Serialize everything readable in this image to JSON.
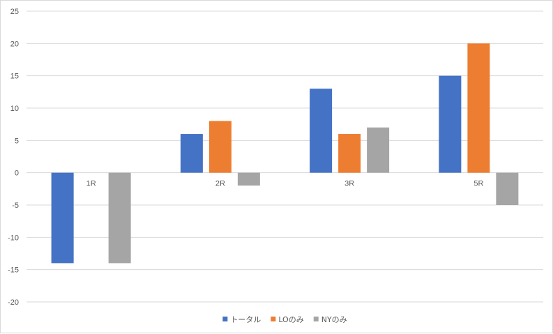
{
  "chart_data": {
    "type": "bar",
    "categories": [
      "1R",
      "2R",
      "3R",
      "5R"
    ],
    "series": [
      {
        "name": "トータル",
        "values": [
          -14,
          6,
          13,
          15
        ],
        "color": "#4472C4"
      },
      {
        "name": "LOのみ",
        "values": [
          0,
          8,
          6,
          20
        ],
        "color": "#ED7D31"
      },
      {
        "name": "NYのみ",
        "values": [
          -14,
          -2,
          7,
          -5
        ],
        "color": "#A5A5A5"
      }
    ],
    "y_ticks": [
      -20,
      -15,
      -10,
      -5,
      0,
      5,
      10,
      15,
      20,
      25
    ],
    "ylim": [
      -20,
      25
    ],
    "grid": true,
    "legend_position": "bottom",
    "title": "",
    "xlabel": "",
    "ylabel": ""
  }
}
